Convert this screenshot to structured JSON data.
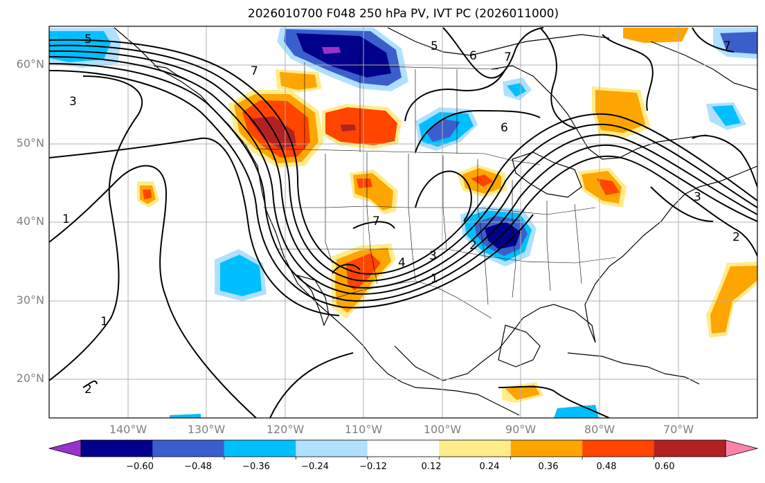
{
  "title": "2026010700 F048 250 hPa PV, IVT PC (2026011000)",
  "lat_labels": [
    "60°N",
    "50°N",
    "40°N",
    "30°N",
    "20°N"
  ],
  "lon_labels": [
    "140°W",
    "130°W",
    "120°W",
    "110°W",
    "100°W",
    "90°W",
    "80°W",
    "70°W"
  ],
  "colorbar": {
    "ticks": [
      "−0.60",
      "−0.48",
      "−0.36",
      "−0.24",
      "−0.12",
      "0.12",
      "0.24",
      "0.36",
      "0.48",
      "0.60"
    ],
    "colors": [
      "#9932cc",
      "#00008b",
      "#3a5fcd",
      "#00bfff",
      "#b0e0ff",
      "#ffffff",
      "#ffec8b",
      "#ffa500",
      "#ff4500",
      "#b22222",
      "#ff82ab"
    ]
  },
  "contour_labels": [
    "5",
    "3",
    "1",
    "2",
    "1",
    "7",
    "5",
    "6",
    "7",
    "6",
    "4",
    "3",
    "2",
    "1",
    "7",
    "3",
    "2",
    "7"
  ],
  "colors": {
    "land_outline": "#000000",
    "grid": "#b0b0b0",
    "contour": "#000000"
  }
}
